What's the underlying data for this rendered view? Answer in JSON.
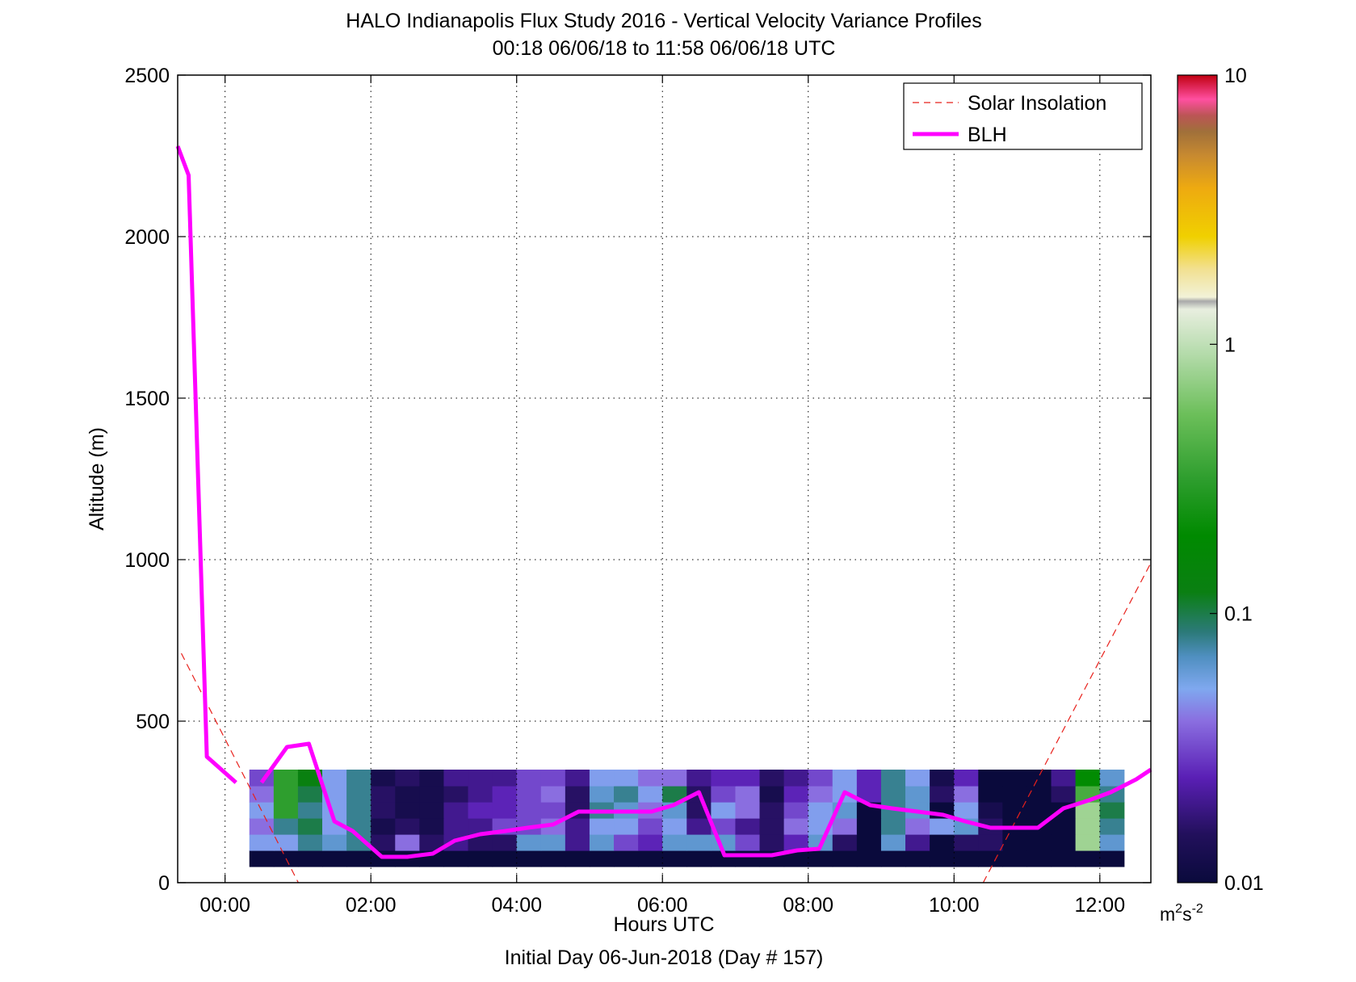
{
  "chart_data": {
    "type": "heatmap",
    "title": "HALO Indianapolis Flux Study 2016 - Vertical Velocity Variance Profiles",
    "subtitle": "00:18 06/06/18 to 11:58 06/06/18  UTC",
    "xlabel": "Hours UTC",
    "footer": "Initial Day 06-Jun-2018 (Day # 157)",
    "ylabel": "Altitude (m)",
    "xlim_hours": [
      -0.65,
      12.7
    ],
    "ylim": [
      0,
      2500
    ],
    "x_ticks": [
      {
        "value": 0,
        "label": "00:00"
      },
      {
        "value": 2,
        "label": "02:00"
      },
      {
        "value": 4,
        "label": "04:00"
      },
      {
        "value": 6,
        "label": "06:00"
      },
      {
        "value": 8,
        "label": "08:00"
      },
      {
        "value": 10,
        "label": "10:00"
      },
      {
        "value": 12,
        "label": "12:00"
      }
    ],
    "y_ticks": [
      {
        "value": 0,
        "label": "0"
      },
      {
        "value": 500,
        "label": "500"
      },
      {
        "value": 1000,
        "label": "1000"
      },
      {
        "value": 1500,
        "label": "1500"
      },
      {
        "value": 2000,
        "label": "2000"
      },
      {
        "value": 2500,
        "label": "2500"
      }
    ],
    "grid": true,
    "colorbar": {
      "scale": "log",
      "range": [
        0.01,
        10
      ],
      "ticks": [
        {
          "value": 10,
          "label": "10"
        },
        {
          "value": 1,
          "label": "1"
        },
        {
          "value": 0.1,
          "label": "0.1"
        },
        {
          "value": 0.01,
          "label": "0.01"
        }
      ],
      "units_base": "m",
      "units_exp1": "2",
      "units_mid": "s",
      "units_exp2": "-2"
    },
    "legend": {
      "placement": "top-right",
      "entries": [
        {
          "label": "Solar Insolation",
          "style": "dashed",
          "color": "#e8201b"
        },
        {
          "label": "BLH",
          "style": "solid",
          "color": "#ff00ff"
        }
      ]
    },
    "blh": {
      "color": "#ff00ff",
      "segment1": {
        "x": [
          -0.65,
          -0.5,
          -0.25,
          0.15
        ],
        "y": [
          2280,
          2190,
          390,
          310
        ]
      },
      "segment2": {
        "x": [
          0.5,
          0.85,
          1.15,
          1.5,
          1.75,
          2.15,
          2.5,
          2.85,
          3.15,
          3.5,
          3.85,
          4.15,
          4.5,
          4.85,
          5.15,
          5.5,
          5.85,
          6.15,
          6.5,
          6.85,
          7.15,
          7.5,
          7.85,
          8.15,
          8.5,
          8.85,
          9.15,
          9.5,
          9.85,
          10.15,
          10.5,
          10.85,
          11.15,
          11.5,
          11.85,
          12.15,
          12.5,
          12.7
        ],
        "y": [
          310,
          420,
          430,
          190,
          160,
          80,
          80,
          90,
          130,
          150,
          160,
          170,
          180,
          220,
          220,
          220,
          220,
          240,
          280,
          85,
          85,
          85,
          100,
          105,
          280,
          240,
          230,
          220,
          210,
          190,
          170,
          170,
          170,
          230,
          255,
          280,
          320,
          350
        ]
      }
    },
    "solar_insolation": {
      "color": "#e8201b",
      "segments": [
        {
          "x": [
            -0.6,
            1.05
          ],
          "y": [
            710,
            -20
          ]
        },
        {
          "x": [
            10.4,
            12.7
          ],
          "y": [
            0,
            990
          ]
        }
      ]
    },
    "heatmap": {
      "t0_hours": 0.3333,
      "dt_hours": 0.3333,
      "alt0_m": 50,
      "dalt_m": 50,
      "value_units": "m2 s-2",
      "note": "values are 10 * log10(variance); n = missing",
      "rows_bottom_to_top": [
        "-20 -20 -20 -20 -20 -20 -20 -20 -20 -20 -20 -20 -20 -20 -20 -20 -20 -20 -20 -20 -20 -20 -20 -20 -20 -20 -20 -20 -20 -20 -20 -20 -20 -20 -20 -20",
        "-13 -13 -11 -12 -11 -18 -14 -18 -17 -18 -18 -12 -12 -17 -12 -15 -16 -12 -12 -12 -15 -18 -16 -12 -18 -20 -12 -17 -20 -18 -18 -20 -20 -20 -1 -12",
        "-14 -11 -10 -13 -11 -19 -18 -19 -17 -17 -15 -15 -14 -17 -13 -13 -15 -13 -17 -15 -17 -18 -14 -13 -14 -20 -11 -14 -13 -12 -18 -20 -20 -20 -1 -11",
        "-13 -5 -11 -13 -11 -18 -19 -19 -17 -16 -16 -15 -15 -18 -11 -12 -14 -12 -18 -13 -14 -18 -15 -13 -12 -20 -11 -12 -20 -13 -19 -20 -20 -20 -1 -10",
        "-14 -5 -10 -13 -11 -18 -19 -19 -18 -17 -16 -15 -14 -18 -12 -11 -13 -10 -18 -15 -14 -19 -16 -14 -13 -16 -11 -12 -18 -14 -20 -20 -20 -18 -4 -11",
        "-15 -5 -9 -13 -11 -19 -18 -19 -17 -17 -17 -15 -15 -17 -13 -13 -14 -14 -17 -16 -16 -18 -17 -15 -13 -16 -11 -13 -19 -16 -20 -20 -20 -17 -7 -12"
      ]
    }
  }
}
